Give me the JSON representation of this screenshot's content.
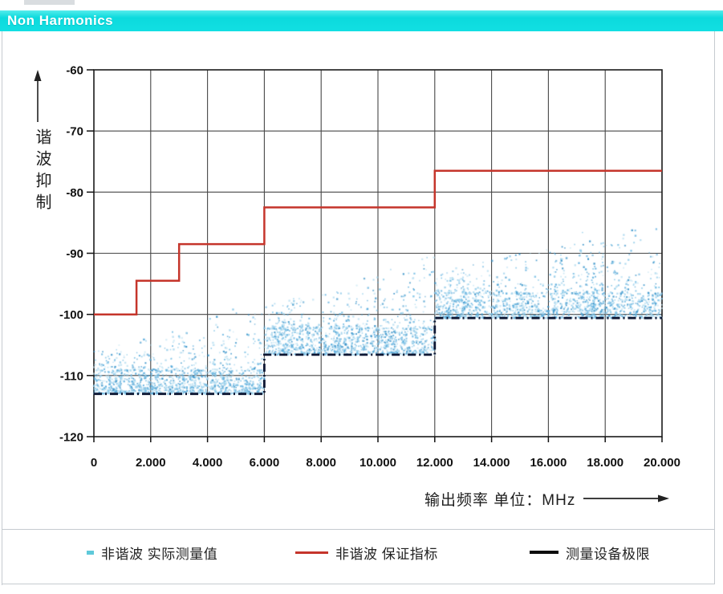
{
  "header": {
    "title": "Non Harmonics",
    "bg_color": "#12dfe2",
    "text_color": "#ffffff"
  },
  "chart_data": {
    "type": "scatter",
    "title": "Non Harmonics",
    "xlabel": "输出频率 单位：MHz",
    "ylabel": "谐波抑制",
    "xlim": [
      0,
      20
    ],
    "ylim": [
      -120,
      -60
    ],
    "grid": true,
    "x_tick_labels": [
      "0",
      "2.000",
      "4.000",
      "6.000",
      "8.000",
      "10.000",
      "12.000",
      "14.000",
      "16.000",
      "18.000",
      "20.000"
    ],
    "y_tick_labels": [
      "-60",
      "-70",
      "-80",
      "-90",
      "-100",
      "-110",
      "-120"
    ],
    "series": [
      {
        "name": "非谐波 实际测量值",
        "type": "scatter",
        "color": "#7fc3e6"
      },
      {
        "name": "非谐波 保证指标",
        "type": "step-line",
        "color": "#c5352b",
        "points": [
          [
            0,
            -100
          ],
          [
            1.5,
            -100
          ],
          [
            1.5,
            -94.5
          ],
          [
            3,
            -94.5
          ],
          [
            3,
            -88.5
          ],
          [
            6,
            -88.5
          ],
          [
            6,
            -82.5
          ],
          [
            12,
            -82.5
          ],
          [
            12,
            -76.5
          ],
          [
            20,
            -76.5
          ]
        ]
      },
      {
        "name": "测量设备极限",
        "type": "step-line-dashed",
        "color": "#0e1733",
        "points": [
          [
            0,
            -113
          ],
          [
            6,
            -113
          ],
          [
            6,
            -106.6
          ],
          [
            12,
            -106.6
          ],
          [
            12,
            -100.6
          ],
          [
            20,
            -100.6
          ]
        ]
      }
    ],
    "scatter_model": {
      "seed": 1337,
      "point_colors": [
        "#c3e4f3",
        "#9fd2ec",
        "#7fc3e6",
        "#5caede",
        "#3f97cb"
      ],
      "bands": [
        {
          "x_range": [
            0,
            6
          ],
          "floor": -113,
          "dense_top": -109.2,
          "dense_n": 1000,
          "sparse_n": 240,
          "max_rise": 11,
          "columns": 24
        },
        {
          "x_range": [
            6,
            12
          ],
          "floor": -106.6,
          "dense_top": -102.3,
          "dense_n": 900,
          "sparse_n": 260,
          "max_rise": 12,
          "columns": 28
        },
        {
          "x_range": [
            12,
            20
          ],
          "floor": -100.6,
          "dense_top": -96.6,
          "dense_n": 1100,
          "sparse_n": 320,
          "max_rise": 11.5,
          "columns": 32
        }
      ],
      "outliers": [
        [
          17.2,
          -86.6
        ],
        [
          15.2,
          -91.4
        ],
        [
          18.85,
          -90.2
        ],
        [
          13.7,
          -92.2
        ],
        [
          4.9,
          -99.2
        ],
        [
          10.9,
          -93.4
        ]
      ]
    },
    "legend_position": "bottom"
  },
  "legend": {
    "items": [
      {
        "label": "非谐波 实际测量值",
        "marker": "scatter-swatch",
        "color": "#5fc9da"
      },
      {
        "label": "非谐波 保证指标",
        "marker": "red-line",
        "color": "#c5352b"
      },
      {
        "label": "测量设备极限",
        "marker": "black-line",
        "color": "#0d0d0d"
      }
    ]
  }
}
